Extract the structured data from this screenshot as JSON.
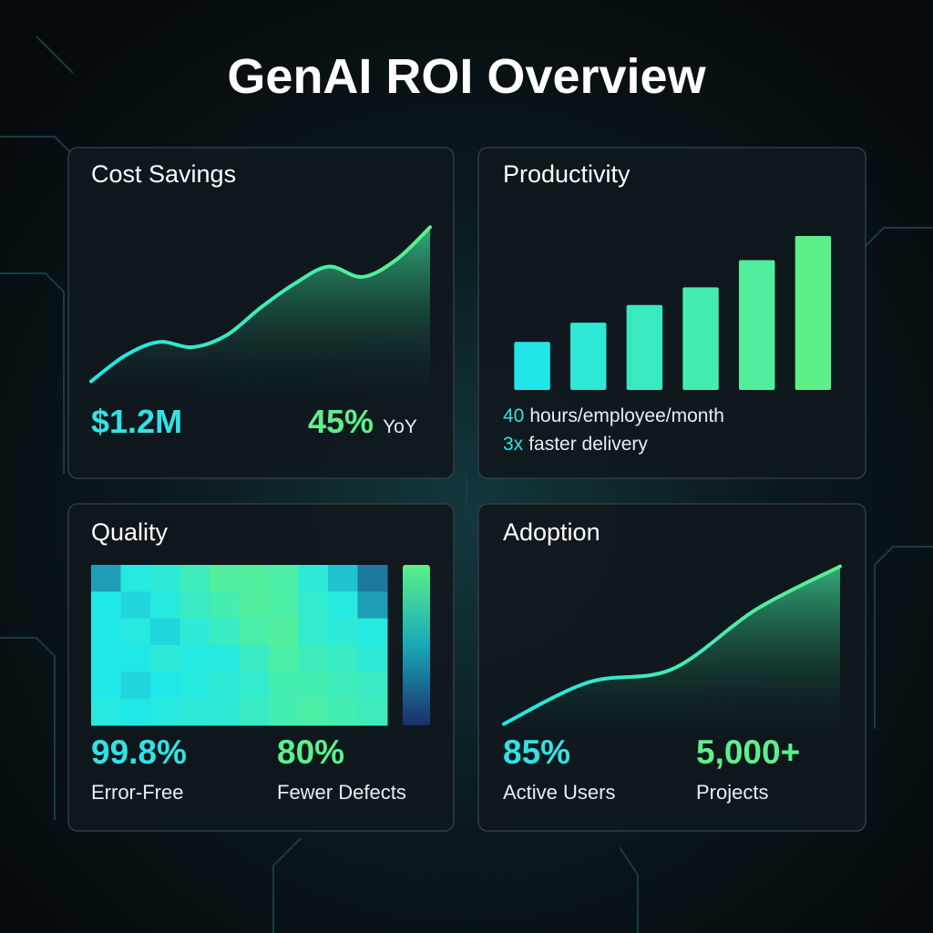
{
  "title": "GenAI ROI Overview",
  "chart_data": [
    {
      "type": "line",
      "title": "Cost Savings",
      "values": [
        5,
        20,
        28,
        25,
        32,
        48,
        62,
        72,
        66,
        76,
        95
      ],
      "ylim": [
        0,
        100
      ],
      "colors": [
        "#22e5e8",
        "#5cf08a"
      ],
      "metrics": [
        {
          "value": "$1.2M",
          "color": "#2fe3e6"
        },
        {
          "value": "45%",
          "label": "YoY",
          "color": "#5cf08a"
        }
      ]
    },
    {
      "type": "bar",
      "title": "Productivity",
      "values": [
        30,
        42,
        53,
        64,
        81,
        96
      ],
      "ylim": [
        0,
        100
      ],
      "colors": [
        "#22e5e8",
        "#5cf08a"
      ],
      "metrics": [
        {
          "value": "40",
          "label": "hours/employee/month",
          "color": "#2fe3e6"
        },
        {
          "value": "3x",
          "label": "faster delivery",
          "color": "#2fe3e6"
        }
      ]
    },
    {
      "type": "heatmap",
      "title": "Quality",
      "colors": [
        "#1b2f6b",
        "#20e8e8",
        "#5cf08a"
      ],
      "zlim": [
        0,
        100
      ],
      "values": [
        [
          30,
          55,
          60,
          75,
          90,
          90,
          85,
          60,
          40,
          20
        ],
        [
          50,
          45,
          55,
          70,
          80,
          90,
          85,
          65,
          55,
          30
        ],
        [
          50,
          55,
          45,
          60,
          70,
          85,
          90,
          65,
          60,
          55
        ],
        [
          50,
          50,
          60,
          55,
          55,
          70,
          85,
          75,
          70,
          60
        ],
        [
          50,
          45,
          50,
          55,
          60,
          65,
          80,
          80,
          75,
          70
        ],
        [
          55,
          50,
          55,
          60,
          60,
          70,
          80,
          85,
          80,
          75
        ]
      ],
      "metrics": [
        {
          "value": "99.8%",
          "label": "Error-Free",
          "color": "#2fe3e6"
        },
        {
          "value": "80%",
          "label": "Fewer Defects",
          "color": "#5cf08a"
        }
      ]
    },
    {
      "type": "line",
      "title": "Adoption",
      "values": [
        3,
        28,
        36,
        72,
        98
      ],
      "ylim": [
        0,
        100
      ],
      "colors": [
        "#22e5e8",
        "#5cf08a"
      ],
      "metrics": [
        {
          "value": "85%",
          "label": "Active Users",
          "color": "#2fe3e6"
        },
        {
          "value": "5,000+",
          "label": "Projects",
          "color": "#5cf08a"
        }
      ]
    }
  ]
}
